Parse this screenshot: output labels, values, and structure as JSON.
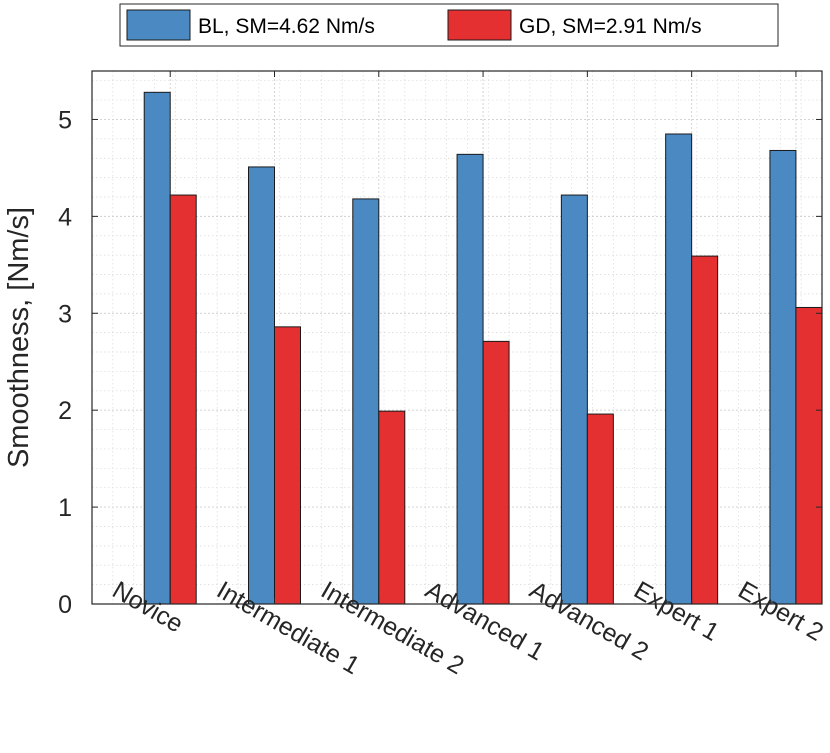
{
  "chart_data": {
    "type": "bar",
    "categories": [
      "Novice",
      "Intermediate 1",
      "Intermediate 2",
      "Advanced 1",
      "Advanced 2",
      "Expert 1",
      "Expert 2"
    ],
    "series": [
      {
        "name": "BL, SM=4.62 Nm/s",
        "color": "#4a89c2",
        "values": [
          5.28,
          4.51,
          4.18,
          4.64,
          4.22,
          4.85,
          4.68
        ]
      },
      {
        "name": "GD, SM=2.91 Nm/s",
        "color": "#e43030",
        "values": [
          4.22,
          2.86,
          1.99,
          2.71,
          1.96,
          3.59,
          3.06
        ]
      }
    ],
    "xlabel": "",
    "ylabel": "Smoothness, [Nm/s]",
    "ylim": [
      0,
      5.5
    ],
    "yticks": [
      0,
      1,
      2,
      3,
      4,
      5
    ],
    "grid": true,
    "minor_grid": true,
    "legend_position": "top, outside the plot"
  }
}
